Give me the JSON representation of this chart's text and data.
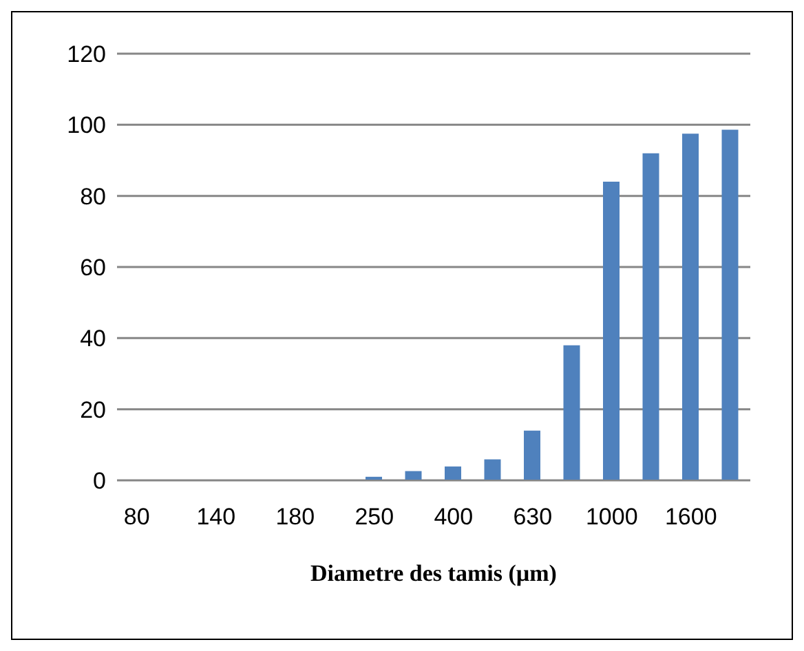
{
  "chart_data": {
    "type": "bar",
    "xlabel": "Diametre des tamis (µm)",
    "categories": [
      "80",
      null,
      "140",
      null,
      "180",
      null,
      "250",
      null,
      "400",
      null,
      "630",
      null,
      "1000",
      null,
      "1600",
      null
    ],
    "values": [
      0,
      0,
      0,
      0,
      0,
      0,
      1,
      2.6,
      3.9,
      5.9,
      14,
      38,
      84,
      92,
      97.5,
      98.6
    ],
    "color": "#4f81bd",
    "ylim": [
      0,
      120
    ],
    "yticks": [
      0,
      20,
      40,
      60,
      80,
      100,
      120
    ],
    "grid": "y",
    "legend": false
  }
}
